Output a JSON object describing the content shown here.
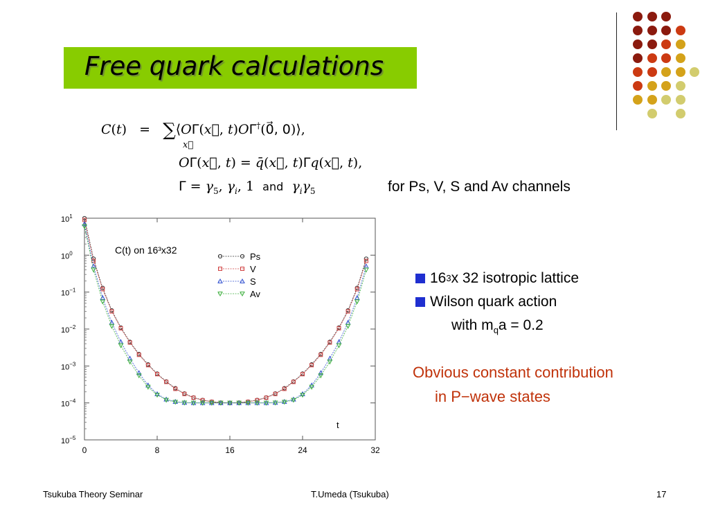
{
  "slide": {
    "title": "Free quark calculations",
    "channels_text": "for Ps, V, S and Av channels",
    "bullets": [
      {
        "pre": "16",
        "sup": "3",
        "post": " x 32 isotropic lattice"
      },
      {
        "text": "Wilson quark action"
      }
    ],
    "bullet_sub": {
      "pre": "with m",
      "sub": "q",
      "post": "a = 0.2"
    },
    "note": [
      "Obvious constant contribution",
      "in P−wave states"
    ],
    "formula": {
      "and_word": "and"
    }
  },
  "footer": {
    "left": "Tsukuba Theory Seminar",
    "center": "T.Umeda (Tsukuba)",
    "page": "17"
  },
  "decoration": {
    "dot_colors": [
      "#8b1a0e",
      "#cc3a12",
      "#d4a21a",
      "#d2cc6e"
    ]
  },
  "chart_data": {
    "type": "scatter",
    "title": "C(t) on 16³x32",
    "xlabel": "t",
    "ylabel": "",
    "y_scale": "log",
    "xlim": [
      0,
      32
    ],
    "ylim": [
      1e-05,
      10
    ],
    "x_ticks": [
      0,
      8,
      16,
      24,
      32
    ],
    "y_tick_exponents": [
      1,
      0,
      -1,
      -2,
      -3,
      -4,
      -5
    ],
    "legend_position": "top-center",
    "series": [
      {
        "name": "Ps",
        "color": "#333333",
        "marker": "circle",
        "x": [
          0,
          1,
          2,
          3,
          4,
          5,
          6,
          7,
          8,
          9,
          10,
          11,
          12,
          13,
          14,
          15,
          16,
          17,
          18,
          19,
          20,
          21,
          22,
          23,
          24,
          25,
          26,
          27,
          28,
          29,
          30,
          31
        ],
        "y": [
          10,
          0.8,
          0.13,
          0.032,
          0.011,
          0.0045,
          0.0021,
          0.0011,
          0.00062,
          0.00038,
          0.00025,
          0.00018,
          0.00014,
          0.00012,
          0.000108,
          0.000102,
          0.0001,
          0.000102,
          0.000108,
          0.00012,
          0.00014,
          0.00018,
          0.00025,
          0.00038,
          0.00062,
          0.0011,
          0.0021,
          0.0045,
          0.011,
          0.032,
          0.13,
          0.8
        ]
      },
      {
        "name": "V",
        "color": "#d04040",
        "marker": "square",
        "x": [
          0,
          1,
          2,
          3,
          4,
          5,
          6,
          7,
          8,
          9,
          10,
          11,
          12,
          13,
          14,
          15,
          16,
          17,
          18,
          19,
          20,
          21,
          22,
          23,
          24,
          25,
          26,
          27,
          28,
          29,
          30,
          31
        ],
        "y": [
          9,
          0.7,
          0.12,
          0.03,
          0.0105,
          0.0043,
          0.002,
          0.00105,
          0.0006,
          0.00037,
          0.00024,
          0.000175,
          0.000138,
          0.000118,
          0.000107,
          0.000101,
          0.0001,
          0.000101,
          0.000107,
          0.000118,
          0.000138,
          0.000175,
          0.00024,
          0.00037,
          0.0006,
          0.00105,
          0.002,
          0.0043,
          0.0105,
          0.03,
          0.12,
          0.7
        ]
      },
      {
        "name": "S",
        "color": "#3050d0",
        "marker": "triangle-up",
        "x": [
          0,
          1,
          2,
          3,
          4,
          5,
          6,
          7,
          8,
          9,
          10,
          11,
          12,
          13,
          14,
          15,
          16,
          17,
          18,
          19,
          20,
          21,
          22,
          23,
          24,
          25,
          26,
          27,
          28,
          29,
          30,
          31
        ],
        "y": [
          7,
          0.5,
          0.07,
          0.015,
          0.0045,
          0.0016,
          0.00065,
          0.0003,
          0.000175,
          0.000125,
          0.000108,
          0.000102,
          0.0001,
          0.0001,
          0.0001,
          0.0001,
          0.0001,
          0.0001,
          0.0001,
          0.0001,
          0.0001,
          0.000102,
          0.000108,
          0.000125,
          0.000175,
          0.0003,
          0.00065,
          0.0016,
          0.0045,
          0.015,
          0.07,
          0.5
        ]
      },
      {
        "name": "Av",
        "color": "#40b040",
        "marker": "triangle-down",
        "x": [
          0,
          1,
          2,
          3,
          4,
          5,
          6,
          7,
          8,
          9,
          10,
          11,
          12,
          13,
          14,
          15,
          16,
          17,
          18,
          19,
          20,
          21,
          22,
          23,
          24,
          25,
          26,
          27,
          28,
          29,
          30,
          31
        ],
        "y": [
          6,
          0.4,
          0.055,
          0.012,
          0.0036,
          0.0013,
          0.00055,
          0.00027,
          0.000165,
          0.00012,
          0.000106,
          0.000101,
          0.0001,
          0.0001,
          0.0001,
          0.0001,
          0.0001,
          0.0001,
          0.0001,
          0.0001,
          0.0001,
          0.000101,
          0.000106,
          0.00012,
          0.000165,
          0.00027,
          0.00055,
          0.0013,
          0.0036,
          0.012,
          0.055,
          0.4
        ]
      }
    ]
  }
}
